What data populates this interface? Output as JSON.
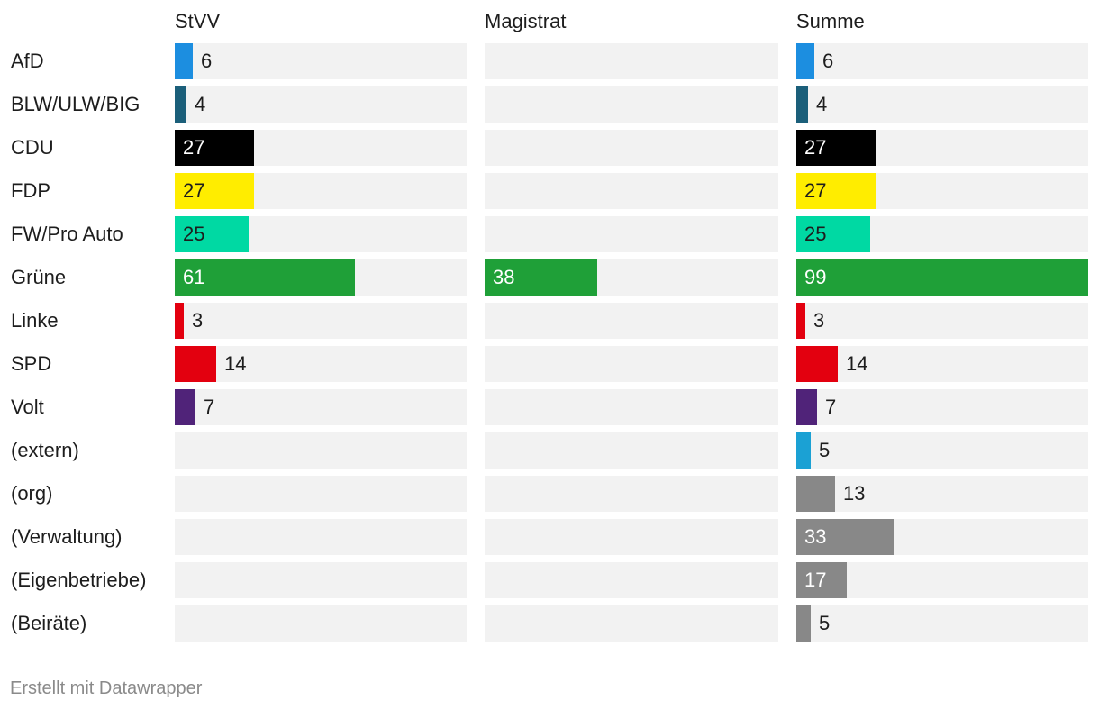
{
  "chart_data": {
    "type": "bar",
    "columns": [
      "StVV",
      "Magistrat",
      "Summe"
    ],
    "categories": [
      "AfD",
      "BLW/ULW/BIG",
      "CDU",
      "FDP",
      "FW/Pro Auto",
      "Grüne",
      "Linke",
      "SPD",
      "Volt",
      "(extern)",
      "(org)",
      "(Verwaltung)",
      "(Eigenbetriebe)",
      "(Beiräte)"
    ],
    "colors": [
      "#1c8ee0",
      "#1b5f7a",
      "#000000",
      "#ffed00",
      "#00d9a3",
      "#1fa038",
      "#e3000f",
      "#e3000f",
      "#502379",
      "#1ba1d4",
      "#888888",
      "#888888",
      "#888888",
      "#888888"
    ],
    "label_colors": [
      "#1d1d1d",
      "#1d1d1d",
      "#ffffff",
      "#1d1d1d",
      "#1d1d1d",
      "#ffffff",
      "#1d1d1d",
      "#1d1d1d",
      "#1d1d1d",
      "#1d1d1d",
      "#1d1d1d",
      "#ffffff",
      "#ffffff",
      "#1d1d1d"
    ],
    "series": [
      {
        "name": "StVV",
        "values": [
          6,
          4,
          27,
          27,
          25,
          61,
          3,
          14,
          7,
          null,
          null,
          null,
          null,
          null
        ]
      },
      {
        "name": "Magistrat",
        "values": [
          null,
          null,
          null,
          null,
          null,
          38,
          null,
          null,
          null,
          null,
          null,
          null,
          null,
          null
        ]
      },
      {
        "name": "Summe",
        "values": [
          6,
          4,
          27,
          27,
          25,
          99,
          3,
          14,
          7,
          5,
          13,
          33,
          17,
          5
        ]
      }
    ],
    "xlim": [
      0,
      99
    ],
    "track_color": "#f2f2f2",
    "grid": false,
    "legend": "none"
  },
  "footer": {
    "credit": "Erstellt mit Datawrapper"
  }
}
